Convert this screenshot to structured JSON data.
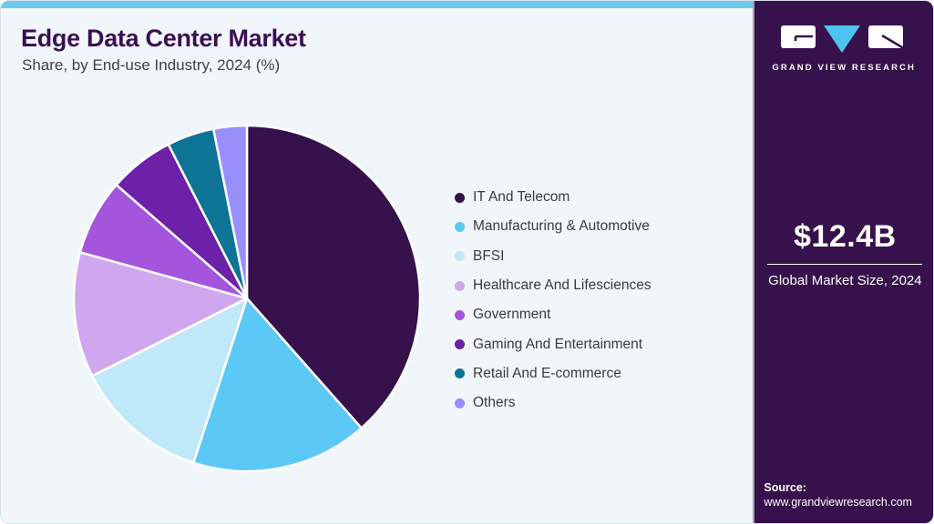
{
  "header": {
    "title": "Edge Data Center Market",
    "subtitle": "Share, by End-use Industry, 2024 (%)"
  },
  "chart_data": {
    "type": "pie",
    "title": "Edge Data Center Market Share, by End-use Industry, 2024 (%)",
    "units": "%",
    "start_angle_deg": 0,
    "direction": "clockwise",
    "legend_position": "right",
    "value_labels_shown": false,
    "slices": [
      {
        "label": "IT And Telecom",
        "value": 38.5,
        "color": "#36114c"
      },
      {
        "label": "Manufacturing & Automotive",
        "value": 16.5,
        "color": "#5bc8f5"
      },
      {
        "label": "BFSI",
        "value": 12.6,
        "color": "#bfe8f9"
      },
      {
        "label": "Healthcare And Lifesciences",
        "value": 11.7,
        "color": "#d0a7ee"
      },
      {
        "label": "Government",
        "value": 7.1,
        "color": "#a455dc"
      },
      {
        "label": "Gaming And Entertainment",
        "value": 6.1,
        "color": "#6d20a8"
      },
      {
        "label": "Retail And E-commerce",
        "value": 4.4,
        "color": "#0e7495"
      },
      {
        "label": "Others",
        "value": 3.1,
        "color": "#998ffa"
      }
    ]
  },
  "sidebar": {
    "brand": "GRAND VIEW RESEARCH",
    "market_size": "$12.4B",
    "market_size_caption": "Global Market Size, 2024",
    "source_label": "Source:",
    "source_url": "www.grandviewresearch.com"
  },
  "colors": {
    "accent_bar": "#6ec9ec",
    "panel_bg": "#f1f6fa",
    "sidebar_bg": "#36114b",
    "title": "#3a1053",
    "text": "#3f3f49",
    "logo_triangle": "#4fc3f0"
  }
}
